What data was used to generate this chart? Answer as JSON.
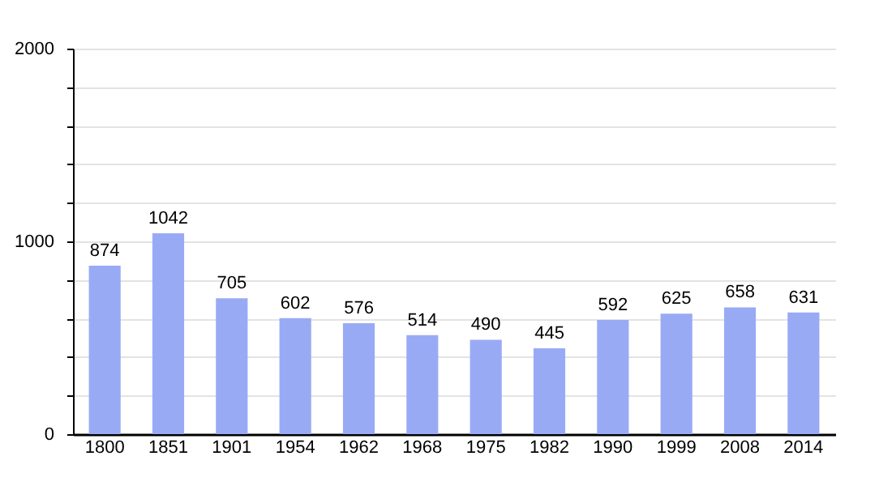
{
  "chart_data": {
    "type": "bar",
    "categories": [
      "1800",
      "1851",
      "1901",
      "1954",
      "1962",
      "1968",
      "1975",
      "1982",
      "1990",
      "1999",
      "2008",
      "2014"
    ],
    "values": [
      874,
      1042,
      705,
      602,
      576,
      514,
      490,
      445,
      592,
      625,
      658,
      631
    ],
    "color": "#99aaf5",
    "ylim": [
      0,
      2000
    ],
    "yticks": [
      0,
      {
        "value": 200,
        "label": null
      },
      {
        "value": 400,
        "label": null
      },
      {
        "value": 600,
        "label": null
      },
      {
        "value": 800,
        "label": null
      },
      1000,
      {
        "value": 1200,
        "label": null
      },
      {
        "value": 1400,
        "label": null
      },
      {
        "value": 1600,
        "label": null
      },
      {
        "value": 1800,
        "label": null
      },
      2000
    ],
    "grid": true,
    "data_labels": true
  }
}
